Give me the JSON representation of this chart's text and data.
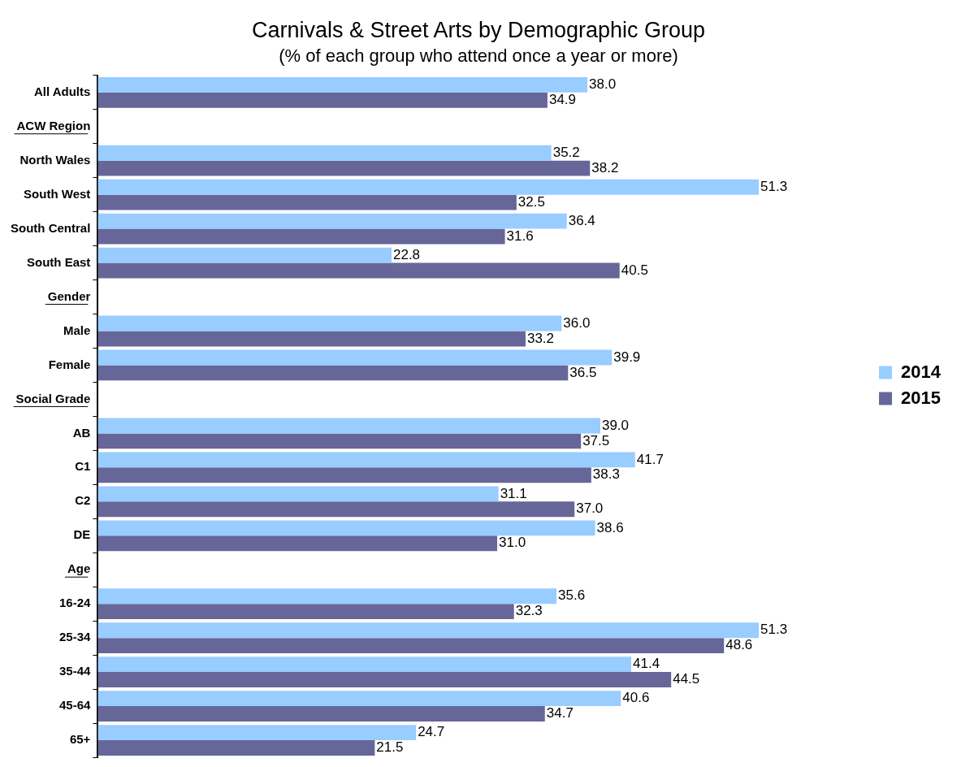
{
  "chart_data": {
    "type": "bar",
    "orientation": "horizontal",
    "title": "Carnivals & Street Arts by Demographic Group",
    "subtitle": "(% of each group who attend once a year or more)",
    "categories": [
      "All Adults",
      "ACW Region",
      "North Wales",
      "South West",
      "South Central",
      "South East",
      "Gender",
      "Male",
      "Female",
      "Social Grade",
      "AB",
      "C1",
      "C2",
      "DE",
      "Age",
      "16-24",
      "25-34",
      "35-44",
      "45-64",
      "65+"
    ],
    "series": [
      {
        "name": "2014",
        "color": "#99ccff",
        "values": [
          38.0,
          null,
          35.2,
          51.3,
          36.4,
          22.8,
          null,
          36.0,
          39.9,
          null,
          39.0,
          41.7,
          31.1,
          38.6,
          null,
          35.6,
          51.3,
          41.4,
          40.6,
          24.7
        ],
        "value_labels": [
          "38.0",
          null,
          "35.2",
          "51.3",
          "36.4",
          "22.8",
          null,
          "36.0",
          "39.9",
          null,
          "39.0",
          "41.7",
          "31.1",
          "38.6",
          null,
          "35.6",
          "51.3",
          "41.4",
          "40.6",
          "24.7"
        ]
      },
      {
        "name": "2015",
        "color": "#666699",
        "values": [
          34.9,
          null,
          38.2,
          32.5,
          31.6,
          40.5,
          null,
          33.2,
          36.5,
          null,
          37.5,
          38.3,
          37.0,
          31.0,
          null,
          32.3,
          48.6,
          44.5,
          34.7,
          21.5
        ],
        "value_labels": [
          "34.9",
          null,
          "38.2",
          "32.5",
          "31.6",
          "40.5",
          null,
          "33.2",
          "36.5",
          null,
          "37.5",
          "38.3",
          "37.0",
          "31.0",
          null,
          "32.3",
          "48.6",
          "44.5",
          "34.7",
          "21.5"
        ]
      }
    ],
    "tick_labels": "y",
    "legend": "right"
  }
}
